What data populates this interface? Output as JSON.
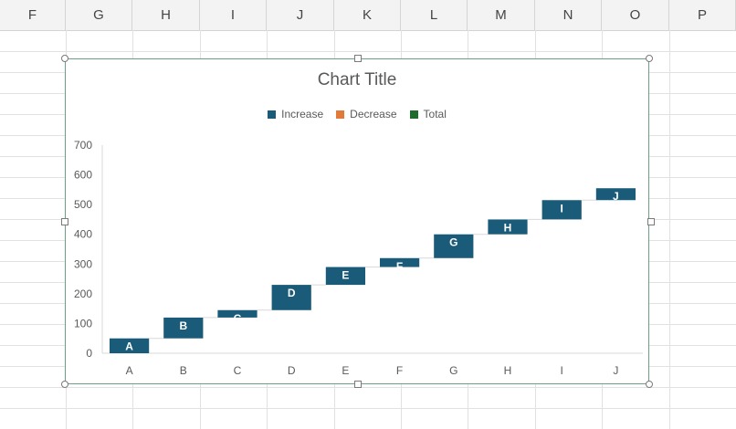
{
  "spreadsheet": {
    "columns": [
      "F",
      "G",
      "H",
      "I",
      "J",
      "K",
      "L",
      "M",
      "N",
      "O",
      "P"
    ]
  },
  "chart_data": {
    "type": "bar",
    "subtype": "waterfall",
    "title": "Chart Title",
    "legend": [
      {
        "name": "Increase",
        "color": "#1b5b7a"
      },
      {
        "name": "Decrease",
        "color": "#e07b3a"
      },
      {
        "name": "Total",
        "color": "#1f6b2e"
      }
    ],
    "legend_position": "top",
    "categories": [
      "A",
      "B",
      "C",
      "D",
      "E",
      "F",
      "G",
      "H",
      "I",
      "J"
    ],
    "values": [
      50,
      70,
      25,
      85,
      60,
      30,
      80,
      50,
      65,
      40
    ],
    "ylim": [
      0,
      700
    ],
    "yticks": [
      0,
      100,
      200,
      300,
      400,
      500,
      600,
      700
    ],
    "gridlines": false,
    "bar_color": "#1b5b7a",
    "label_color": "#ffffff"
  }
}
